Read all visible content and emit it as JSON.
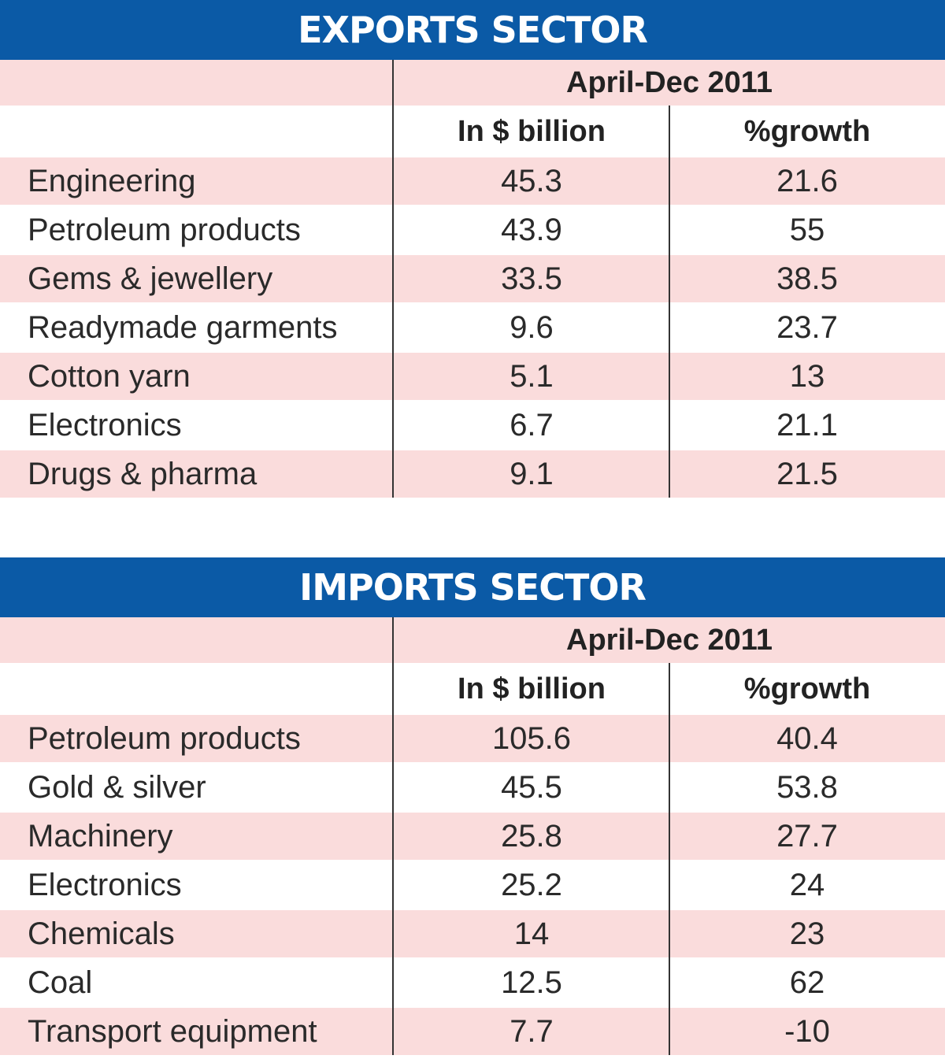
{
  "chart_data": [
    {
      "type": "table",
      "title": "EXPORTS SECTOR",
      "period": "April-Dec 2011",
      "columns": [
        "In $ billion",
        "%growth"
      ],
      "rows": [
        {
          "label": "Engineering",
          "value": "45.3",
          "growth": "21.6"
        },
        {
          "label": "Petroleum products",
          "value": "43.9",
          "growth": "55"
        },
        {
          "label": "Gems & jewellery",
          "value": "33.5",
          "growth": "38.5"
        },
        {
          "label": "Readymade garments",
          "value": "9.6",
          "growth": "23.7"
        },
        {
          "label": "Cotton yarn",
          "value": "5.1",
          "growth": "13"
        },
        {
          "label": "Electronics",
          "value": "6.7",
          "growth": "21.1"
        },
        {
          "label": "Drugs & pharma",
          "value": "9.1",
          "growth": "21.5"
        }
      ]
    },
    {
      "type": "table",
      "title": "IMPORTS SECTOR",
      "period": "April-Dec 2011",
      "columns": [
        "In $ billion",
        "%growth"
      ],
      "rows": [
        {
          "label": "Petroleum products",
          "value": "105.6",
          "growth": "40.4"
        },
        {
          "label": "Gold & silver",
          "value": "45.5",
          "growth": "53.8"
        },
        {
          "label": "Machinery",
          "value": "25.8",
          "growth": "27.7"
        },
        {
          "label": "Electronics",
          "value": "25.2",
          "growth": "24"
        },
        {
          "label": "Chemicals",
          "value": "14",
          "growth": "23"
        },
        {
          "label": "Coal",
          "value": "12.5",
          "growth": "62"
        },
        {
          "label": "Transport equipment",
          "value": "7.7",
          "growth": "-10"
        }
      ]
    }
  ],
  "colors": {
    "banner": "#0b5aa6",
    "stripe": "#fadcdc",
    "banner_text": "#ffffff"
  }
}
